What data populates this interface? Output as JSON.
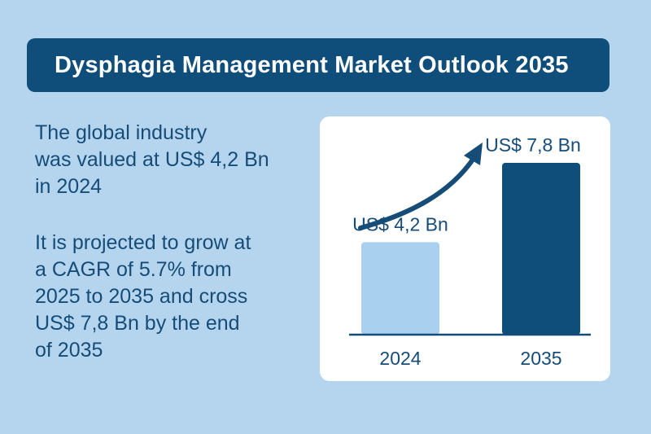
{
  "header": {
    "title": "Dysphagia Management Market Outlook 2035"
  },
  "summary": {
    "line1": "The global industry",
    "line2": "was valued at US$ 4,2 Bn",
    "line3": "in 2024",
    "p2_line1": "It is projected to grow at",
    "p2_line2": "a CAGR of 5.7% from",
    "p2_line3": "2025 to 2035 and cross",
    "p2_line4": "US$ 7,8 Bn by the end",
    "p2_line5": "of 2035"
  },
  "colors": {
    "background": "#b5d5ef",
    "banner": "#0f4d7a",
    "text": "#154c78",
    "bar_2024": "#a9d0ee",
    "bar_2035": "#0f4d7a",
    "card": "#ffffff"
  },
  "chart_data": {
    "type": "bar",
    "categories": [
      "2024",
      "2035"
    ],
    "values": [
      4.2,
      7.8
    ],
    "value_labels": [
      "US$ 4,2 Bn",
      "US$ 7,8 Bn"
    ],
    "title": "",
    "xlabel": "",
    "ylabel": "",
    "ylim": [
      0,
      8.5
    ],
    "grid": false,
    "annotations": [
      "upward growth arrow"
    ]
  }
}
